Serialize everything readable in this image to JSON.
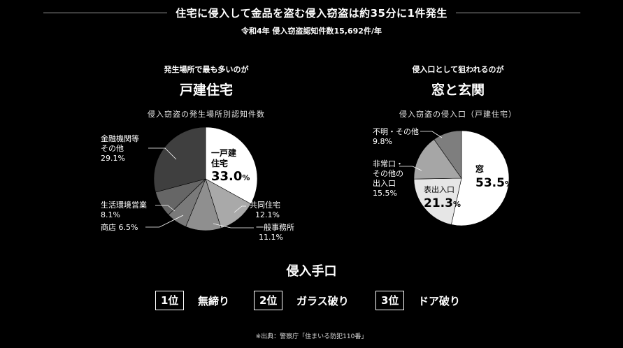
{
  "header": {
    "title": "住宅に侵入して金品を盗む侵入窃盗は約35分に1件発生",
    "subtitle": "令和4年 侵入窃盗認知件数15,692件/年"
  },
  "left": {
    "lead": "発生場所で最も多いのが",
    "heading": "戸建住宅",
    "caption": "侵入窃盗の発生場所別認知件数"
  },
  "right": {
    "lead": "侵入口として狙われるのが",
    "heading": "窓と玄関",
    "caption": "侵入窃盗の侵入口（戸建住宅）"
  },
  "chart_data": [
    {
      "type": "pie",
      "title": "侵入窃盗の発生場所別認知件数",
      "slices": [
        {
          "label": "一戸建住宅",
          "value": 33.0,
          "value_text": "33.0",
          "color": "#ffffff"
        },
        {
          "label": "共同住宅",
          "value": 12.1,
          "value_text": "12.1%",
          "color": "#a9a9a9"
        },
        {
          "label": "一般事務所",
          "value": 11.1,
          "value_text": "11.1%",
          "color": "#8f8f8f"
        },
        {
          "label": "商店",
          "value": 6.5,
          "value_text": "6.5%",
          "color": "#7a7a7a"
        },
        {
          "label": "生活環境営業",
          "value": 8.1,
          "value_text": "8.1%",
          "color": "#666666"
        },
        {
          "label": "金融機関等その他",
          "value": 29.1,
          "value_text": "29.1%",
          "color": "#3f3f3f"
        }
      ]
    },
    {
      "type": "pie",
      "title": "侵入窃盗の侵入口（戸建住宅）",
      "slices": [
        {
          "label": "窓",
          "value": 53.5,
          "value_text": "53.5",
          "color": "#ffffff"
        },
        {
          "label": "表出入口",
          "value": 21.3,
          "value_text": "21.3",
          "color": "#e6e6e6"
        },
        {
          "label": "非常口・その他の出入口",
          "value": 15.5,
          "value_text": "15.5%",
          "color": "#a6a6a6"
        },
        {
          "label": "不明・その他",
          "value": 9.8,
          "value_text": "9.8%",
          "color": "#7e7e7e"
        }
      ]
    }
  ],
  "labels": {
    "pct": "%",
    "c1_house_l1": "一戸建",
    "c1_house_l2": "住宅",
    "c1_apt": "共同住宅",
    "c1_office": "一般事務所",
    "c1_shop": "商店",
    "c1_service": "生活環境営業",
    "c1_fin_l1": "金融機関等",
    "c1_fin_l2": "その他",
    "c2_window": "窓",
    "c2_front": "表出入口",
    "c2_emerg_l1": "非常口・",
    "c2_emerg_l2": "その他の",
    "c2_emerg_l3": "出入口",
    "c2_unknown": "不明・その他"
  },
  "methods": {
    "title": "侵入手口",
    "items": [
      {
        "rank": "1位",
        "label": "無締り"
      },
      {
        "rank": "2位",
        "label": "ガラス破り"
      },
      {
        "rank": "3位",
        "label": "ドア破り"
      }
    ]
  },
  "source": "※出典：警察庁「住まいる防犯110番」"
}
